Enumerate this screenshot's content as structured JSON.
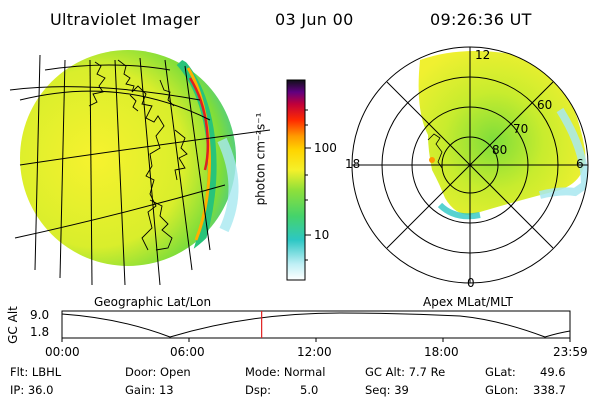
{
  "header": {
    "title": "Ultraviolet Imager",
    "date": "03 Jun 00",
    "time": "09:26:36 UT"
  },
  "colorbar": {
    "unit_label": "photon cm⁻²s⁻¹",
    "tick_100": "100",
    "tick_10": "10"
  },
  "panels": {
    "left_caption": "Geographic Lat/Lon",
    "right_caption": "Apex MLat/MLT"
  },
  "polar": {
    "mlt_12": "12",
    "mlt_18": "18",
    "mlt_6": "6",
    "mlt_0": "0",
    "lat_60": "60",
    "lat_70": "70",
    "lat_80": "80"
  },
  "timeline": {
    "axis_label_1": "GC Alt",
    "y_top": "9.0",
    "y_bottom": "1.8",
    "ticks": [
      "00:00",
      "06:00",
      "12:00",
      "18:00",
      "23:59"
    ],
    "current_fraction": 0.393
  },
  "footer": {
    "flt": "Flt: LBHL",
    "ip": "IP: 36.0",
    "door": "Door: Open",
    "gain": "Gain: 13",
    "mode": "Mode: Normal",
    "dsp_label": "Dsp:",
    "dsp_value": "5.0",
    "gc_alt": "GC Alt: 7.7 Re",
    "seq": "Seq: 39",
    "glat_label": "GLat:",
    "glat_value": "49.6",
    "glon_label": "GLon:",
    "glon_value": "338.7"
  },
  "colors": {
    "auroral_green": "#7ee03a",
    "auroral_yellow": "#f4f02a",
    "time_marker": "#e02020"
  }
}
